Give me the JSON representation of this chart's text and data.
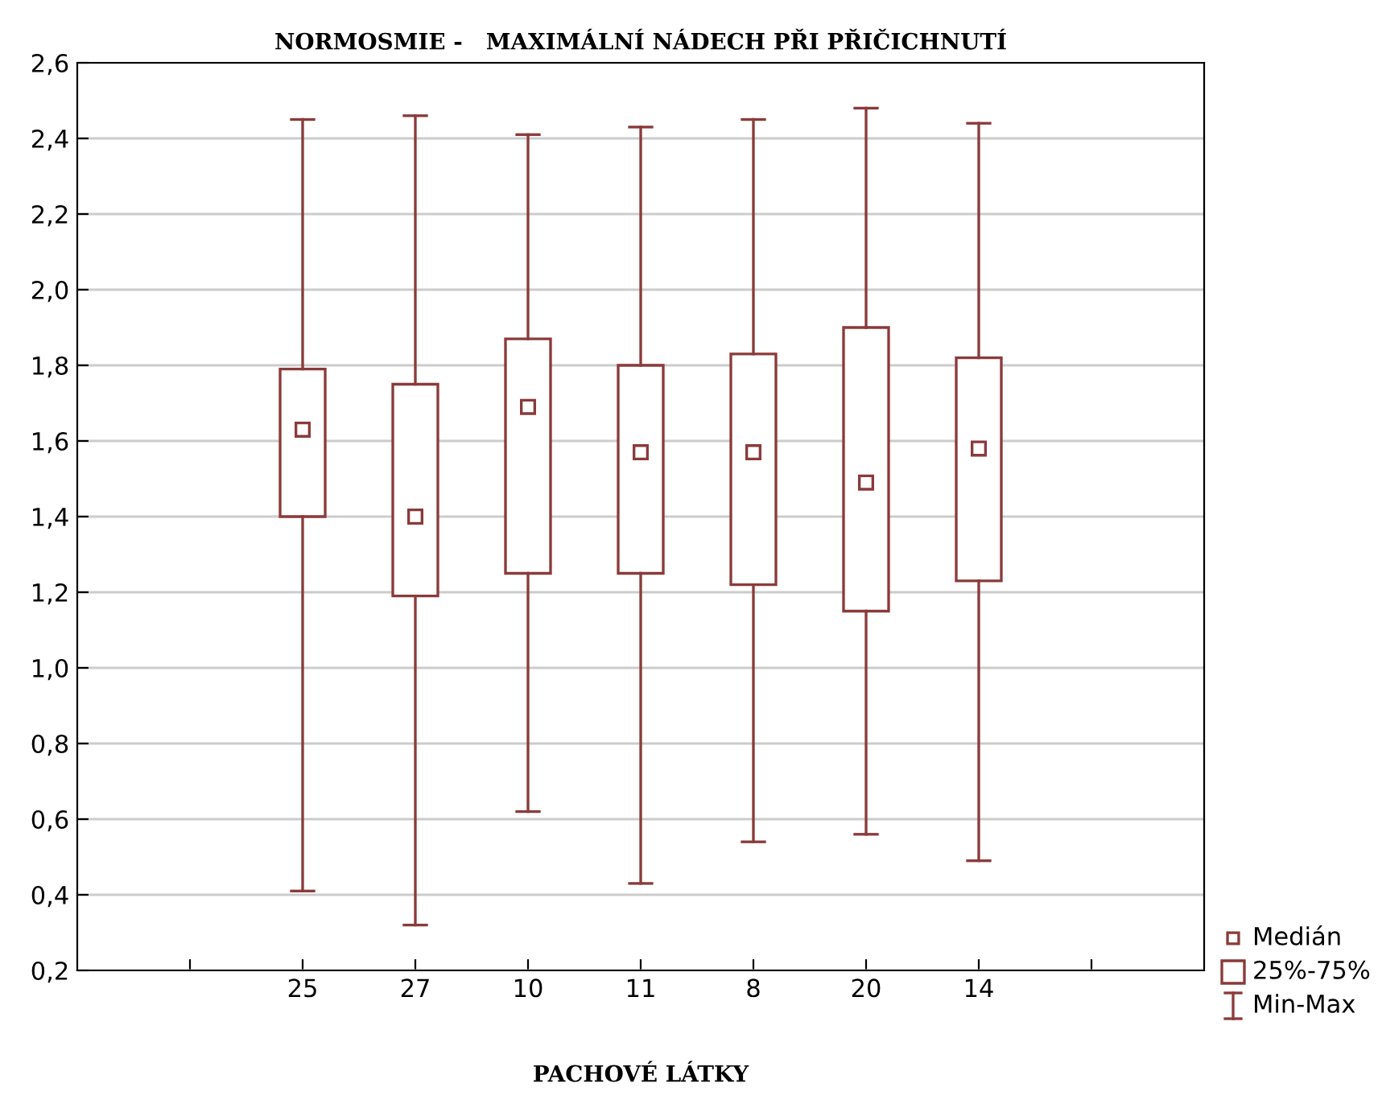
{
  "chart_data": {
    "type": "box",
    "title": "NORMOSMIE -   MAXIMÁLNÍ NÁDECH PŘI PŘIČICHNUTÍ",
    "xlabel": "PACHOVÉ LÁTKY",
    "categories": [
      null,
      "25",
      "27",
      "10",
      "11",
      "8",
      "20",
      "14",
      null
    ],
    "color": "#8b3a3a",
    "marker": "square",
    "grid": "y",
    "annotations": [
      "Medián",
      "25%-75%",
      "Min-Max"
    ],
    "boxes": [
      null,
      {
        "low": 0.41,
        "q1": 1.4,
        "median": 1.63,
        "q3": 1.79,
        "high": 2.45
      },
      {
        "low": 0.32,
        "q1": 1.19,
        "median": 1.4,
        "q3": 1.75,
        "high": 2.46
      },
      {
        "low": 0.62,
        "q1": 1.25,
        "median": 1.69,
        "q3": 1.87,
        "high": 2.41
      },
      {
        "low": 0.43,
        "q1": 1.25,
        "median": 1.57,
        "q3": 1.8,
        "high": 2.43
      },
      {
        "low": 0.54,
        "q1": 1.22,
        "median": 1.57,
        "q3": 1.83,
        "high": 2.45
      },
      {
        "low": 0.56,
        "q1": 1.15,
        "median": 1.49,
        "q3": 1.9,
        "high": 2.48
      },
      {
        "low": 0.49,
        "q1": 1.23,
        "median": 1.58,
        "q3": 1.82,
        "high": 2.44
      },
      null
    ],
    "ylim": [
      0.2,
      2.6
    ],
    "yticks": [
      {
        "value": 0.2,
        "label": "0,2"
      },
      {
        "value": 0.4,
        "label": "0,4"
      },
      {
        "value": 0.6,
        "label": "0,6"
      },
      {
        "value": 0.8,
        "label": "0,8"
      },
      {
        "value": 1.0,
        "label": "1,0"
      },
      {
        "value": 1.2,
        "label": "1,2"
      },
      {
        "value": 1.4,
        "label": "1,4"
      },
      {
        "value": 1.6,
        "label": "1,6"
      },
      {
        "value": 1.8,
        "label": "1,8"
      },
      {
        "value": 2.0,
        "label": "2,0"
      },
      {
        "value": 2.2,
        "label": "2,2"
      },
      {
        "value": 2.4,
        "label": "2,4"
      },
      {
        "value": 2.6,
        "label": "2,6"
      }
    ]
  }
}
